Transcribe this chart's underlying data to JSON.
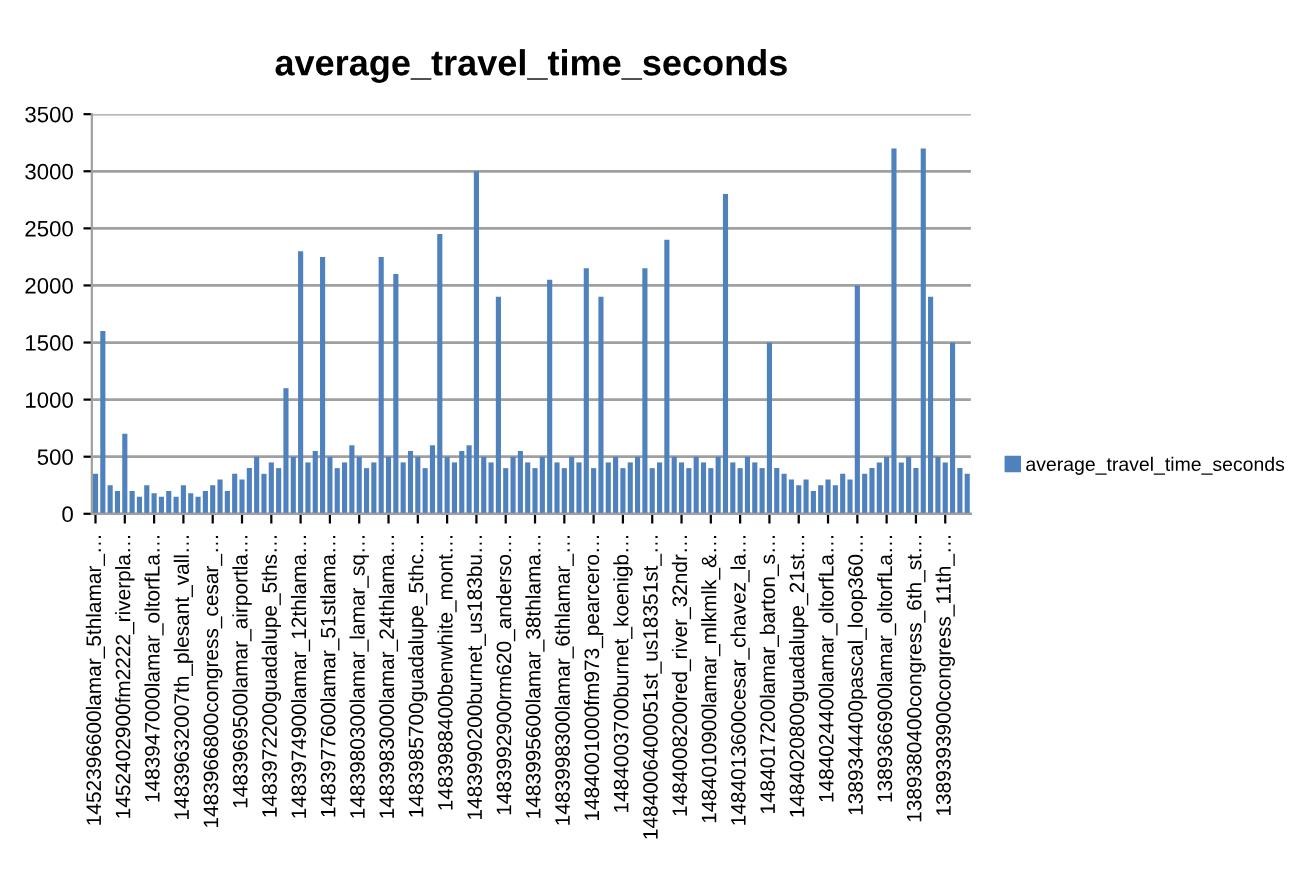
{
  "chart_data": {
    "type": "bar",
    "title": "average_travel_time_seconds",
    "categories": [
      "1452396600lamar_5thlamar_…",
      null,
      null,
      null,
      "1452402900fm2222_riverpla…",
      null,
      null,
      null,
      "1483947000lamar_oltorfLa…",
      null,
      null,
      null,
      "14839632007th_plesant_vall…",
      null,
      null,
      null,
      "1483966800congress_cesar_…",
      null,
      null,
      null,
      "1483969500lamar_airportla…",
      null,
      null,
      null,
      "1483972200guadalupe_5ths…",
      null,
      null,
      null,
      "1483974900lamar_12thlama…",
      null,
      null,
      null,
      "1483977600lamar_51stlama…",
      null,
      null,
      null,
      "1483980300lamar_lamar_sq…",
      null,
      null,
      null,
      "1483983000lamar_24thlama…",
      null,
      null,
      null,
      "1483985700guadalupe_5thc…",
      null,
      null,
      null,
      "1483988400benwhite_mont…",
      null,
      null,
      null,
      "1483990200burnet_us183bu…",
      null,
      null,
      null,
      "1483992900rm620_anderso…",
      null,
      null,
      null,
      "1483995600lamar_38thlama…",
      null,
      null,
      null,
      "1483998300lamar_6thlamar_…",
      null,
      null,
      null,
      "1484001000fm973_pearcero…",
      null,
      null,
      null,
      "1484003700burnet_koenigb…",
      null,
      null,
      null,
      "1484006400051st_us18351st_…",
      null,
      null,
      null,
      "1484008200red_river_32ndr…",
      null,
      null,
      null,
      "1484010900lamar_mlkmlk_&…",
      null,
      null,
      null,
      "1484013600cesar_chavez_la…",
      null,
      null,
      null,
      "1484017200lamar_barton_s…",
      null,
      null,
      null,
      "1484020800guadalupe_21st…",
      null,
      null,
      null,
      "1484024400lamar_oltorfLa…",
      null,
      null,
      null,
      "1389344400pascal_loop360…",
      null,
      null,
      null,
      "1389366900lamar_oltorfLa…",
      null,
      null,
      null,
      "1389380400congress_6th_st…",
      null,
      null,
      null,
      "1389393900congress_11th_…",
      null,
      null,
      null
    ],
    "series": [
      {
        "name": "average_travel_time_seconds",
        "color": "#4f81bd",
        "values": [
          350,
          1600,
          250,
          200,
          700,
          200,
          150,
          250,
          180,
          150,
          200,
          150,
          250,
          180,
          150,
          200,
          250,
          300,
          200,
          350,
          300,
          400,
          500,
          350,
          450,
          400,
          1100,
          500,
          2300,
          450,
          550,
          2250,
          500,
          400,
          450,
          600,
          500,
          400,
          450,
          2250,
          500,
          2100,
          450,
          550,
          500,
          400,
          600,
          2450,
          500,
          450,
          550,
          600,
          3000,
          500,
          450,
          1900,
          400,
          500,
          550,
          450,
          400,
          500,
          2050,
          450,
          400,
          500,
          450,
          2150,
          400,
          1900,
          450,
          500,
          400,
          450,
          500,
          2150,
          400,
          450,
          2400,
          500,
          450,
          400,
          500,
          450,
          400,
          500,
          2800,
          450,
          400,
          500,
          450,
          400,
          1500,
          400,
          350,
          300,
          250,
          300,
          200,
          250,
          300,
          250,
          350,
          300,
          2000,
          350,
          400,
          450,
          500,
          3200,
          450,
          500,
          400,
          3200,
          1900,
          500,
          450,
          1500,
          400,
          350
        ]
      }
    ],
    "ylim": [
      0,
      3500
    ],
    "yticks": [
      0,
      500,
      1000,
      1500,
      2000,
      2500,
      3000,
      3500
    ],
    "grid": "y",
    "legend": "right"
  }
}
